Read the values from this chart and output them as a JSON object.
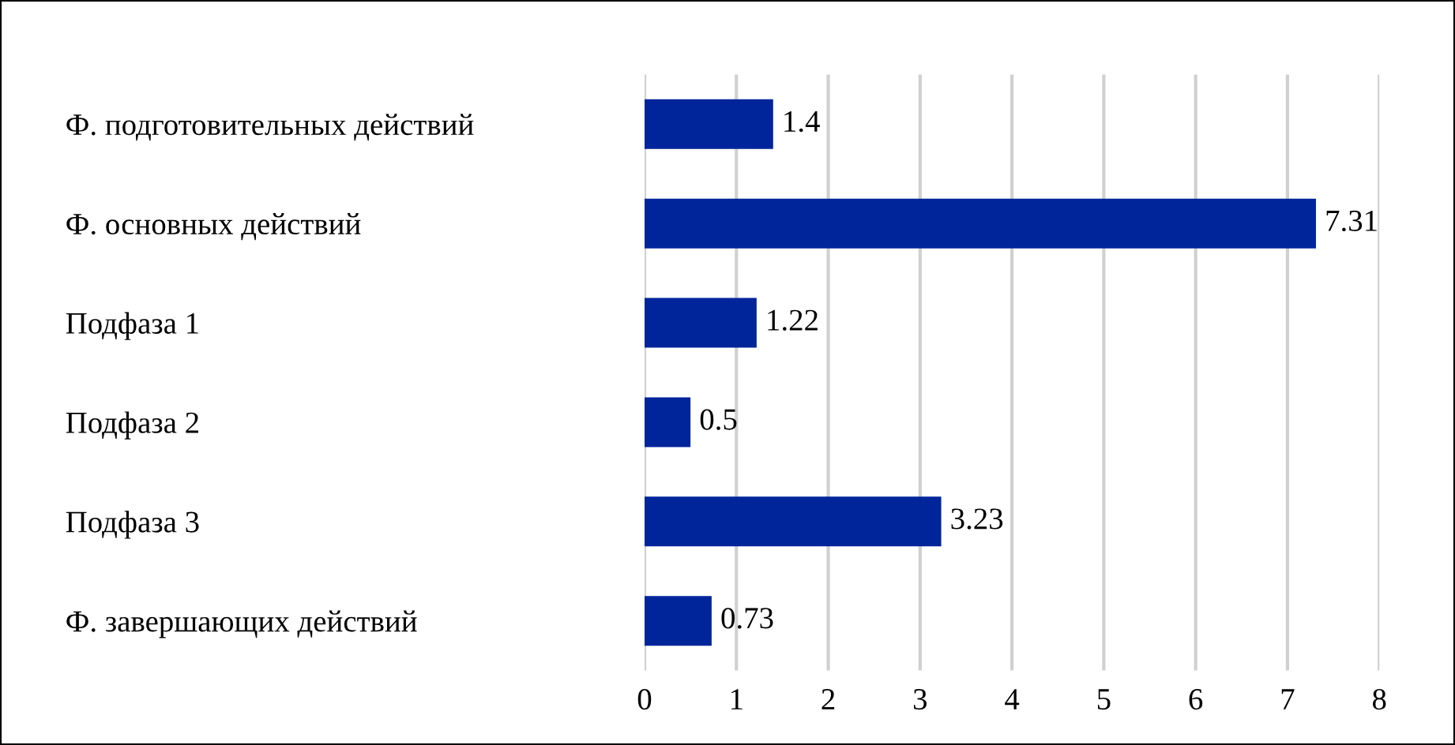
{
  "chart_data": {
    "type": "bar",
    "orientation": "horizontal",
    "categories": [
      "Ф. подготовительных действий",
      "Ф. основных действий",
      "Подфаза 1",
      "Подфаза 2",
      "Подфаза 3",
      "Ф. завершающих действий"
    ],
    "values": [
      1.4,
      7.31,
      1.22,
      0.5,
      3.23,
      0.73
    ],
    "color": "#00259a",
    "xlim": [
      0,
      8
    ],
    "xticks": [
      0,
      1,
      2,
      3,
      4,
      5,
      6,
      7,
      8
    ],
    "grid": "x",
    "data_labels": true,
    "legend": false
  }
}
